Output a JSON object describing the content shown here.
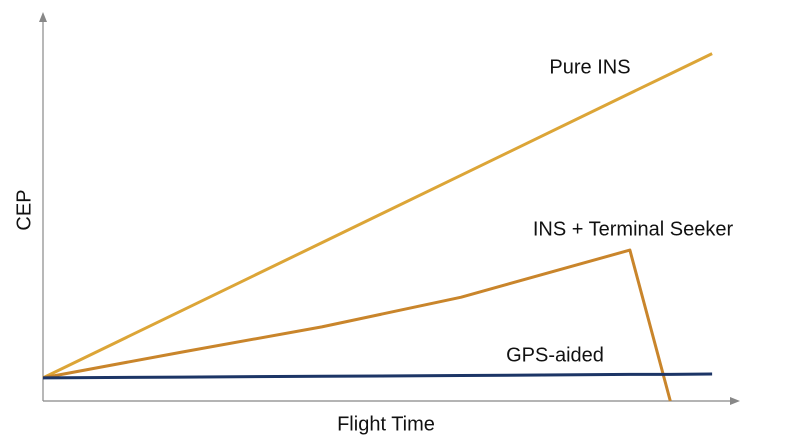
{
  "chart_data": {
    "type": "line",
    "x_label": "Flight Time",
    "y_label": "CEP",
    "x": [
      0,
      20,
      40,
      60,
      84.2,
      90,
      96
    ],
    "series": [
      {
        "name": "Pure INS",
        "color": "#dca537",
        "values": [
          6,
          23.5,
          41,
          58.5,
          79.7,
          84.75,
          90
        ]
      },
      {
        "name": "INS + Terminal Seeker",
        "color": "#c9852b",
        "values": [
          6,
          12.7,
          19.2,
          26.9,
          39.1,
          0,
          null
        ]
      },
      {
        "name": "GPS-aided",
        "color": "#1c3566",
        "values": [
          6,
          6.2,
          6.4,
          6.6,
          6.9,
          6.9,
          7
        ]
      }
    ],
    "xlim": [
      0,
      100
    ],
    "ylim": [
      0,
      100
    ]
  }
}
